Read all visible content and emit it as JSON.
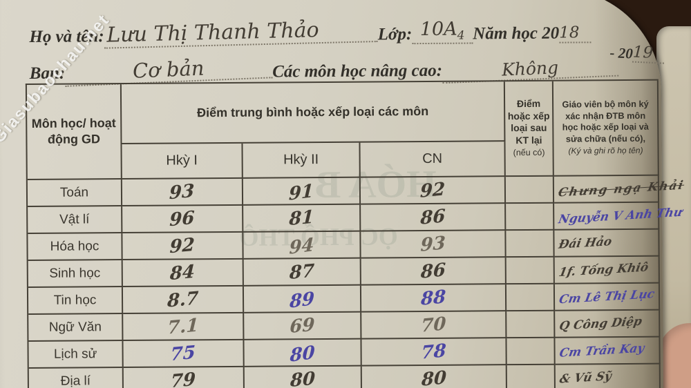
{
  "watermark": "Giasubaochau.net",
  "form": {
    "name_label": "Họ và tên:",
    "name_value": "Lưu Thị Thanh Thảo",
    "class_label": "Lớp:",
    "class_value": "10A",
    "class_subscript": "4",
    "year_label": "Năm học 20",
    "year_first": "18",
    "year_separator": "- 20",
    "year_second": "19",
    "track_label": "Ban:",
    "track_value": "Cơ bản",
    "advanced_label": "Các môn học nâng cao:",
    "advanced_value": "Không"
  },
  "table": {
    "header": {
      "subject": "Môn học/ hoạt động GD",
      "avg_group": "Điểm trung bình hoặc xếp loại các môn",
      "sem1": "Hkỳ I",
      "sem2": "Hkỳ II",
      "year": "CN",
      "retest": "Điểm hoặc xếp loại sau KT lại",
      "retest_note": "(nếu có)",
      "teacher": "Giáo viên bộ môn ký xác nhận ĐTB môn học hoặc xếp loại và sửa chữa (nếu có),",
      "teacher_note": "(Ký và ghi rõ họ tên)"
    },
    "rows": [
      {
        "subject": "Toán",
        "sem1": "93",
        "sem2": "91",
        "cn": "92",
        "retest": "",
        "teacher": "Chưng ngạ Khải",
        "inks": [
          "dark",
          "dark",
          "dark"
        ],
        "teacher_ink": "dark",
        "scribble": true
      },
      {
        "subject": "Vật lí",
        "sem1": "96",
        "sem2": "81",
        "cn": "86",
        "retest": "",
        "teacher": "Nguyễn V Anh Thư",
        "inks": [
          "dark",
          "dark",
          "dark"
        ],
        "teacher_ink": "blue",
        "scribble": false
      },
      {
        "subject": "Hóa học",
        "sem1": "92",
        "sem2": "94",
        "cn": "93",
        "retest": "",
        "teacher": "Đái Hảo",
        "inks": [
          "dark",
          "gray",
          "gray"
        ],
        "teacher_ink": "dark",
        "scribble": false
      },
      {
        "subject": "Sinh học",
        "sem1": "84",
        "sem2": "87",
        "cn": "86",
        "retest": "",
        "teacher": "1f. Tống Khiô",
        "inks": [
          "dark",
          "dark",
          "dark"
        ],
        "teacher_ink": "dark",
        "scribble": false
      },
      {
        "subject": "Tin học",
        "sem1": "8.7",
        "sem2": "89",
        "cn": "88",
        "retest": "",
        "teacher": "Cm Lê Thị Lục",
        "inks": [
          "dark",
          "blue",
          "blue"
        ],
        "teacher_ink": "blue",
        "scribble": false
      },
      {
        "subject": "Ngữ Văn",
        "sem1": "7.1",
        "sem2": "69",
        "cn": "70",
        "retest": "",
        "teacher": "Q Công Diệp",
        "inks": [
          "gray",
          "gray",
          "gray"
        ],
        "teacher_ink": "dark",
        "scribble": false
      },
      {
        "subject": "Lịch sử",
        "sem1": "75",
        "sem2": "80",
        "cn": "78",
        "retest": "",
        "teacher": "Cm Trần Kay",
        "inks": [
          "blue",
          "blue",
          "blue"
        ],
        "teacher_ink": "blue",
        "scribble": false
      },
      {
        "subject": "Địa lí",
        "sem1": "79",
        "sem2": "80",
        "cn": "80",
        "retest": "",
        "teacher": "& Vũ Sỹ",
        "inks": [
          "dark",
          "dark",
          "dark"
        ],
        "teacher_ink": "dark",
        "scribble": false
      }
    ]
  },
  "ghosts": [
    "HÓA B",
    "ỌC PHỔ THÔ"
  ],
  "colors": {
    "ink_dark": "#423c33",
    "ink_blue": "#4a45a3",
    "ink_gray": "#6e675a",
    "table_border": "#454036",
    "page": "#d6d2c4",
    "background": "#2a1a10",
    "watermark": "#fcfcfa"
  }
}
